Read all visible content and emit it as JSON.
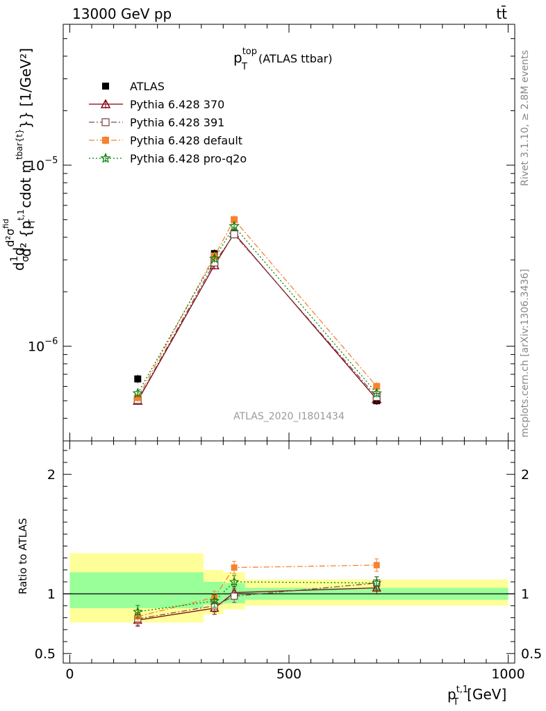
{
  "header": {
    "left": "13000 GeV pp",
    "right": "tt̄"
  },
  "side_labels": {
    "rivet": "Rivet 3.1.10, ≥ 2.8M events",
    "mcplots": "mcplots.cern.ch [arXiv:1306.3436]"
  },
  "main_title": {
    "p": "p",
    "sup": "top",
    "sub": "T",
    "rest": "(ATLAS ttbar)"
  },
  "watermark": "ATLAS_2020_I1801434",
  "colors": {
    "atlas": "#000000",
    "py370": "#7f0010",
    "py391": "#7f4c4c",
    "pydefault": "#f5832f",
    "pyq2o": "#0a7d0a",
    "band_inner": "#99ff99",
    "band_outer": "#ffff99"
  },
  "chart_data": [
    {
      "type": "line",
      "panel": "main",
      "y_scale": "log",
      "xlim": [
        -15,
        1015
      ],
      "ylim": [
        3e-07,
        6e-05
      ],
      "xticks": [
        "0",
        "500",
        "1000"
      ],
      "yticks": [
        {
          "base": "10",
          "exp": "−6",
          "value": 1e-06
        },
        {
          "base": "10",
          "exp": "−5",
          "value": 1e-05
        }
      ],
      "ylabel_parts": {
        "d1": "d",
        "one": "1",
        "sigma": "σ",
        "d2": "d",
        "d2sigma_num": "d²σ",
        "fid": "fid",
        "denom_a": "d² {p",
        "denom_sup": "t,1",
        "denom_sub": "T",
        "denom_b": " cdot m",
        "denom_sup2": "tbar{t}",
        "denom_c": "}} [1/GeV²]"
      },
      "xlabel_parts": {
        "p": "p",
        "sup": "t,1",
        "sub": "T",
        "unit": "[GeV]"
      },
      "series": [
        {
          "name": "ATLAS",
          "key": "atlas",
          "marker": "square-filled",
          "x": [
            155,
            330,
            375,
            700
          ],
          "y": [
            6.6e-07,
            3.25e-06,
            4.2e-06,
            5e-07
          ]
        },
        {
          "name": "Pythia 6.428 370",
          "key": "py370",
          "marker": "triangle-open",
          "line": "solid",
          "x": [
            155,
            330,
            375,
            700
          ],
          "y": [
            5e-07,
            2.8e-06,
            4.2e-06,
            5.1e-07
          ]
        },
        {
          "name": "Pythia 6.428 391",
          "key": "py391",
          "marker": "square-open",
          "line": "dashdot",
          "x": [
            155,
            330,
            375,
            700
          ],
          "y": [
            5.05e-07,
            2.9e-06,
            4.15e-06,
            5.25e-07
          ]
        },
        {
          "name": "Pythia 6.428 default",
          "key": "pydefault",
          "marker": "square-filled",
          "line": "dashdot",
          "x": [
            155,
            330,
            375,
            700
          ],
          "y": [
            5.2e-07,
            3.15e-06,
            5e-06,
            6e-07
          ]
        },
        {
          "name": "Pythia 6.428 pro-q2o",
          "key": "pyq2o",
          "marker": "star-open",
          "line": "dotted",
          "x": [
            155,
            330,
            375,
            700
          ],
          "y": [
            5.5e-07,
            3.05e-06,
            4.6e-06,
            5.5e-07
          ]
        }
      ]
    },
    {
      "type": "line",
      "panel": "ratio",
      "ylabel": "Ratio to ATLAS",
      "xlim": [
        -15,
        1015
      ],
      "ylim": [
        0.42,
        2.28
      ],
      "yticks": [
        "0.5",
        "1",
        "2"
      ],
      "bands": [
        {
          "x0": 0,
          "x1": 305,
          "inner": [
            0.88,
            1.18
          ],
          "outer": [
            0.76,
            1.34
          ]
        },
        {
          "x0": 305,
          "x1": 350,
          "inner": [
            0.91,
            1.1
          ],
          "outer": [
            0.83,
            1.2
          ]
        },
        {
          "x0": 350,
          "x1": 400,
          "inner": [
            0.92,
            1.09
          ],
          "outer": [
            0.87,
            1.18
          ]
        },
        {
          "x0": 400,
          "x1": 1000,
          "inner": [
            0.95,
            1.05
          ],
          "outer": [
            0.9,
            1.12
          ]
        }
      ],
      "series": [
        {
          "name": "Pythia 6.428 370",
          "key": "py370",
          "marker": "triangle-open",
          "line": "solid",
          "x": [
            155,
            330,
            375,
            700
          ],
          "y": [
            0.78,
            0.88,
            1.01,
            1.05
          ]
        },
        {
          "name": "Pythia 6.428 391",
          "key": "py391",
          "marker": "square-open",
          "line": "dashdot",
          "x": [
            155,
            330,
            375,
            700
          ],
          "y": [
            0.79,
            0.9,
            0.98,
            1.09
          ]
        },
        {
          "name": "Pythia 6.428 default",
          "key": "pydefault",
          "marker": "square-filled",
          "line": "dashdot",
          "x": [
            155,
            330,
            375,
            700
          ],
          "y": [
            0.81,
            0.97,
            1.22,
            1.24
          ]
        },
        {
          "name": "Pythia 6.428 pro-q2o",
          "key": "pyq2o",
          "marker": "star-open",
          "line": "dotted",
          "x": [
            155,
            330,
            375,
            700
          ],
          "y": [
            0.85,
            0.94,
            1.1,
            1.09
          ]
        }
      ]
    }
  ]
}
